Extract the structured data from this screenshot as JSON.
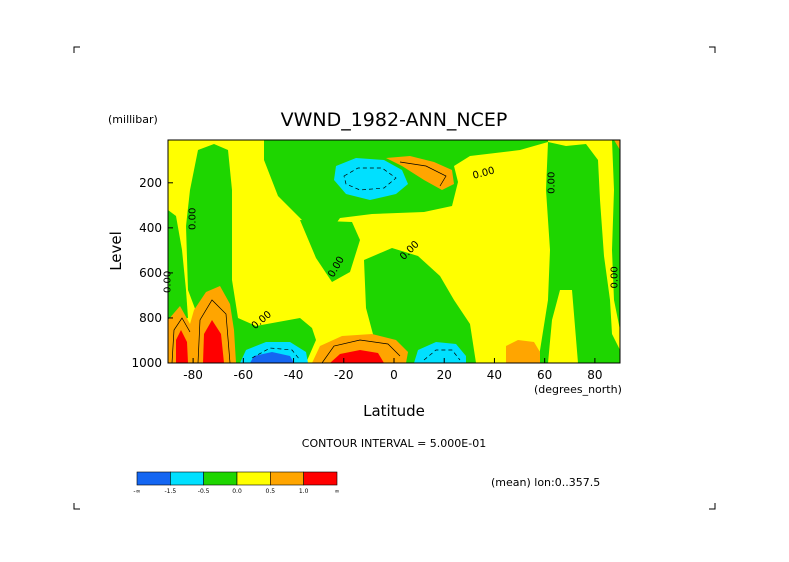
{
  "chart_data": {
    "type": "heatmap",
    "subtype": "filled-contour",
    "title": "VWND_1982-ANN_NCEP",
    "xlabel": "Latitude",
    "x_unit_label": "(degrees_north)",
    "ylabel": "Level",
    "y_unit_label": "(millibar)",
    "xlim": [
      -90,
      90
    ],
    "ylim": [
      1000,
      10
    ],
    "y_inverted": true,
    "x_ticks": [
      {
        "value": -80,
        "label": "-80"
      },
      {
        "value": -60,
        "label": "-60"
      },
      {
        "value": -40,
        "label": "-40"
      },
      {
        "value": -20,
        "label": "-20"
      },
      {
        "value": 0,
        "label": "0"
      },
      {
        "value": 20,
        "label": "20"
      },
      {
        "value": 40,
        "label": "40"
      },
      {
        "value": 60,
        "label": "60"
      },
      {
        "value": 80,
        "label": "80"
      }
    ],
    "y_ticks": [
      {
        "value": 200,
        "label": "200"
      },
      {
        "value": 400,
        "label": "400"
      },
      {
        "value": 600,
        "label": "600"
      },
      {
        "value": 800,
        "label": "800"
      },
      {
        "value": 1000,
        "label": "1000"
      }
    ],
    "contour_interval_text": "CONTOUR INTERVAL = 5.000E-01",
    "footer_text": "(mean) lon:0..357.5",
    "grid": false,
    "colorbar": {
      "colors": [
        "#1466f2",
        "#00e0ff",
        "#1ed600",
        "#ffff00",
        "#ffa500",
        "#ff0000"
      ],
      "labels": [
        "-∞",
        "-1.5",
        "-0.5",
        "0.0",
        "0.5",
        "1.0",
        "∞"
      ]
    },
    "contour_labels": [
      {
        "text": "0.00",
        "lon": -89,
        "lev": 640,
        "angle": -90
      },
      {
        "text": "0.00",
        "lon": -79,
        "lev": 360,
        "angle": -90
      },
      {
        "text": "0.00",
        "lon": -52,
        "lev": 820,
        "angle": -40
      },
      {
        "text": "0.00",
        "lon": -22,
        "lev": 580,
        "angle": -60
      },
      {
        "text": "0.00",
        "lon": 7,
        "lev": 510,
        "angle": -45
      },
      {
        "text": "0.00",
        "lon": 36,
        "lev": 170,
        "angle": -15
      },
      {
        "text": "0.00",
        "lon": 64,
        "lev": 200,
        "angle": -90
      },
      {
        "text": "0.00",
        "lon": 89,
        "lev": 620,
        "angle": -90
      }
    ]
  }
}
